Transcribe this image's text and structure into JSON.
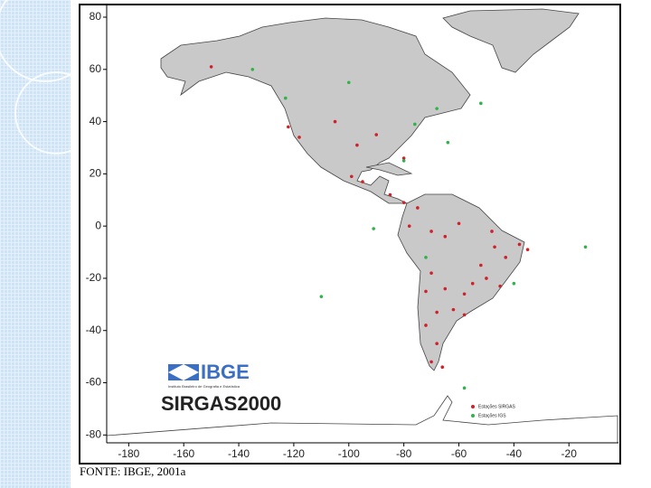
{
  "map": {
    "logo": "IBGE",
    "logo_subtitle": "Instituto Brasileiro de Geografia e Estatística",
    "title": "SIRGAS2000",
    "xlim": [
      -188,
      -2
    ],
    "ylim": [
      -83,
      84.5
    ],
    "lat_ticks": [
      80,
      60,
      40,
      20,
      0,
      -20,
      -40,
      -60,
      -80
    ],
    "lon_ticks": [
      -180,
      -160,
      -140,
      -120,
      -100,
      -80,
      -60,
      -40,
      -20
    ],
    "stations": [
      {
        "name": "Estações SIRGAS",
        "color": "#d0202a",
        "lon": [
          -150,
          -122,
          -118,
          -105,
          -97,
          -90,
          -80,
          -99,
          -95,
          -85,
          -80,
          -75,
          -78,
          -70,
          -65,
          -60,
          -48,
          -47,
          -43,
          -52,
          -55,
          -58,
          -65,
          -70,
          -68,
          -72,
          -68,
          -62,
          -58,
          -72,
          -70,
          -66,
          -38,
          -35,
          -50,
          -45
        ],
        "lat": [
          61,
          38,
          34,
          40,
          31,
          35,
          26,
          19,
          17,
          12,
          9,
          7,
          0,
          -2,
          -4,
          1,
          -2,
          -8,
          -12,
          -15,
          -22,
          -26,
          -24,
          -18,
          -33,
          -38,
          -45,
          -32,
          -34,
          -25,
          -52,
          -54,
          -7,
          -9,
          -20,
          -23
        ]
      },
      {
        "name": "Estações IGS",
        "color": "#2fb34a",
        "lon": [
          -135,
          -123,
          -100,
          -76,
          -68,
          -52,
          -64,
          -91,
          -14,
          -110,
          -58,
          -40,
          -72,
          -80
        ],
        "lat": [
          60,
          49,
          55,
          39,
          45,
          47,
          32,
          -1,
          -8,
          -27,
          -62,
          -22,
          -12,
          25
        ]
      }
    ],
    "source": "FONTE: IBGE, 2001a"
  }
}
